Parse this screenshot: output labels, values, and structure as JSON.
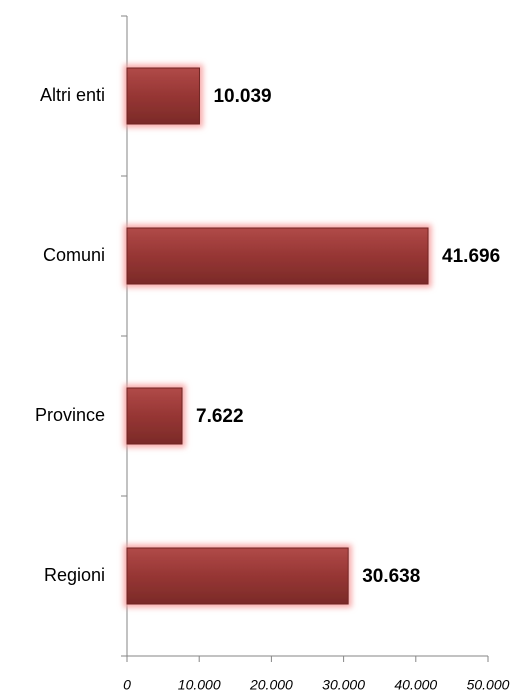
{
  "chart_data": {
    "type": "bar",
    "orientation": "horizontal",
    "categories": [
      "Altri enti",
      "Comuni",
      "Province",
      "Regioni"
    ],
    "values": [
      10039,
      41696,
      7622,
      30638
    ],
    "value_labels": [
      "10.039",
      "41.696",
      "7.622",
      "30.638"
    ],
    "color": "#963634",
    "xlim": [
      0,
      50000
    ],
    "xticks": [
      0,
      {
        "value": 10000,
        "label": "10.000"
      },
      {
        "value": 20000,
        "label": "20.000"
      },
      {
        "value": 30000,
        "label": "30.000"
      },
      {
        "value": 40000,
        "label": "40.000"
      },
      {
        "value": 50000,
        "label": "50.000"
      }
    ],
    "grid": false
  }
}
